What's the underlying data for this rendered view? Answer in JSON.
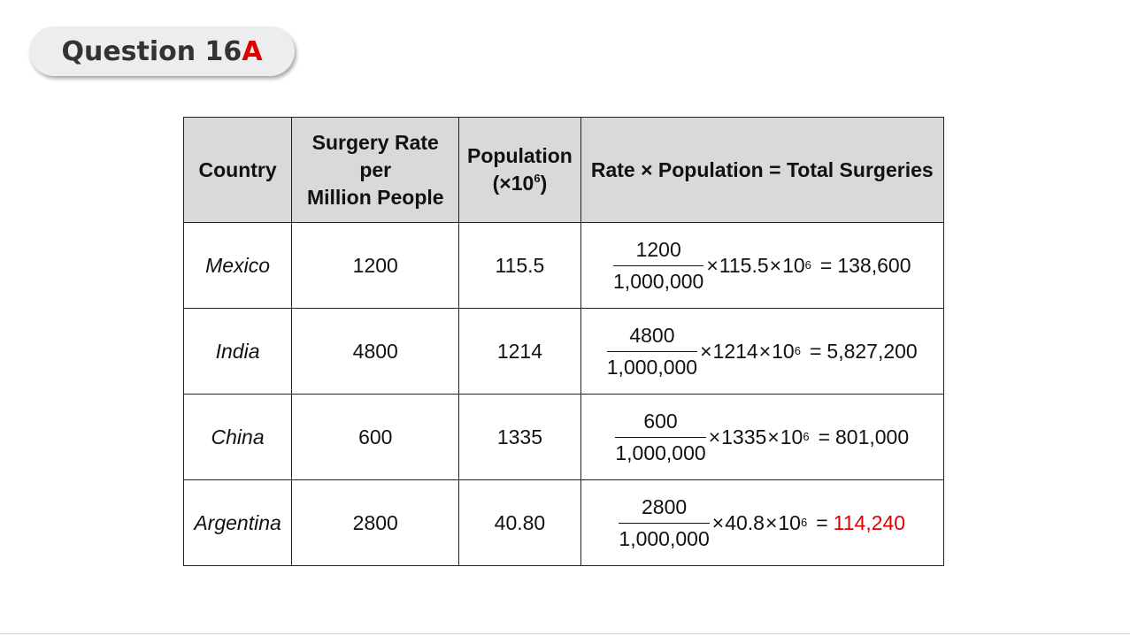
{
  "badge": {
    "text": "Question 16",
    "letter": "A"
  },
  "table": {
    "headers": {
      "country": "Country",
      "rate_line1": "Surgery Rate",
      "rate_line2": "per",
      "rate_line3": "Million People",
      "pop_line1": "Population",
      "pop_line2_pre": "(×10",
      "pop_line2_exp": "6",
      "pop_line2_post": ")",
      "formula": "Rate × Population = Total Surgeries"
    },
    "rows": [
      {
        "country": "Mexico",
        "rate": "1200",
        "population": "115.5",
        "numerator": "1200",
        "denominator": "1,000,000",
        "multiplier": "115.5",
        "base": "10",
        "exp": "6",
        "result": "138,600"
      },
      {
        "country": "India",
        "rate": "4800",
        "population": "1214",
        "numerator": "4800",
        "denominator": "1,000,000",
        "multiplier": "1214",
        "base": "10",
        "exp": "6",
        "result": "5,827,200"
      },
      {
        "country": "China",
        "rate": "600",
        "population": "1335",
        "numerator": "600",
        "denominator": "1,000,000",
        "multiplier": "1335",
        "base": "10",
        "exp": "6",
        "result": "801,000"
      },
      {
        "country": "Argentina",
        "rate": "2800",
        "population": "40.80",
        "numerator": "2800",
        "denominator": "1,000,000",
        "multiplier": "40.8",
        "base": "10",
        "exp": "6",
        "result": "114,240"
      }
    ],
    "symbols": {
      "times": "×",
      "equals": "="
    }
  },
  "colors": {
    "highlight": "#e00000",
    "header_bg": "#d9d9d9",
    "badge_bg": "#ebedee"
  }
}
